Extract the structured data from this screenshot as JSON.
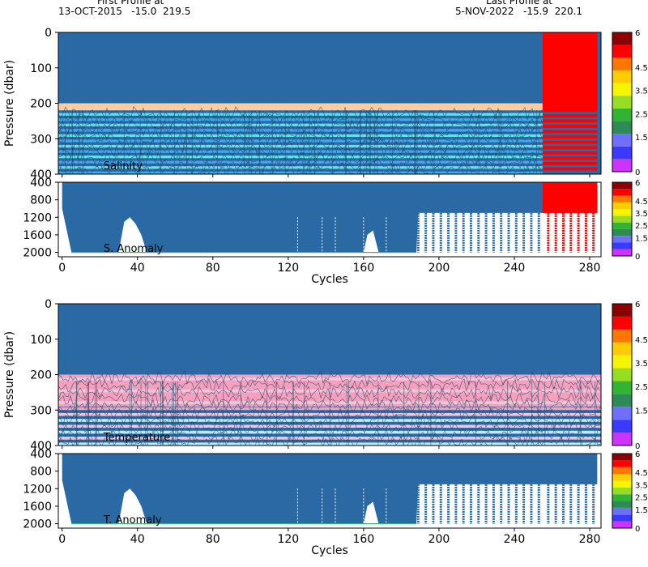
{
  "header": {
    "first_label": "First Profile at",
    "first_value": "13-OCT-2015   -15.0  219.5",
    "last_label": "Last Profile at",
    "last_value": "5-NOV-2022   -15.9  220.1"
  },
  "colors": {
    "background": "#2B69A5",
    "marker": "#2B69A5",
    "salinity_band": "#FDCCA0",
    "salinity_stripe_a": "#5FE2EC",
    "salinity_stripe_b": "#40A8F0",
    "temperature_band": "#F6A0BE",
    "temperature_stripe_a": "#F2C4DE",
    "temperature_stripe_b": "#BCEBF8",
    "flag": "#FF0000",
    "contour": "#1B4763"
  },
  "colorbar": {
    "colors": [
      "#CC33FF",
      "#3A3AFF",
      "#6E6EFF",
      "#2E8B57",
      "#33B333",
      "#99DD22",
      "#F5F500",
      "#FFCC00",
      "#FF7700",
      "#FF0000",
      "#8B0000"
    ],
    "tick_labels": [
      "0",
      "1.5",
      "2.5",
      "3.5",
      "4.5",
      "6"
    ],
    "tick_values": [
      0,
      1.5,
      2.5,
      3.5,
      4.5,
      6
    ],
    "range": [
      0,
      6
    ]
  },
  "chart_data": [
    {
      "type": "heatmap",
      "id": "salinity",
      "annotation": "Salinity",
      "ylabel": "Pressure (dbar)",
      "xlim": [
        -2,
        286
      ],
      "ylim": [
        400,
        0
      ],
      "xticks": [
        0,
        40,
        80,
        120,
        160,
        200,
        240,
        280
      ],
      "yticks": [
        0,
        100,
        200,
        300,
        400
      ],
      "flagged_cycles": [
        255,
        284
      ],
      "band_pressure_range": [
        200,
        220
      ],
      "stripe_pressure_range": [
        220,
        400
      ]
    },
    {
      "type": "scatter",
      "id": "salinity-anomaly",
      "annotation": "S. Anomaly",
      "xlabel": "Cycles",
      "xlim": [
        -2,
        286
      ],
      "ylim": [
        2100,
        400
      ],
      "xticks": [
        0,
        40,
        80,
        120,
        160,
        200,
        240,
        280
      ],
      "yticks": [
        400,
        800,
        1200,
        1600,
        2000
      ],
      "flagged_cycles": [
        255,
        284
      ],
      "max_depth_profile": [
        [
          0,
          1000
        ],
        [
          3,
          1600
        ],
        [
          5,
          2000
        ],
        [
          30,
          2000
        ],
        [
          33,
          1300
        ],
        [
          36,
          1200
        ],
        [
          39,
          1350
        ],
        [
          42,
          1600
        ],
        [
          45,
          2000
        ],
        [
          160,
          2000
        ],
        [
          162,
          1600
        ],
        [
          165,
          1500
        ],
        [
          168,
          2000
        ],
        [
          188,
          2000
        ],
        [
          189,
          1100
        ],
        [
          284,
          1100
        ],
        [
          284,
          1000
        ]
      ],
      "deep_cycle_columns": [
        189,
        193,
        197,
        201,
        205,
        209,
        213,
        217,
        221,
        225,
        229,
        233,
        237,
        241,
        245,
        249,
        253,
        258,
        262,
        266,
        270,
        274,
        278,
        282
      ],
      "white_gap_cycles": [
        125,
        138,
        145,
        160,
        172
      ]
    },
    {
      "type": "heatmap",
      "id": "temperature",
      "annotation": "Temperature",
      "ylabel": "Pressure (dbar)",
      "xlim": [
        -2,
        286
      ],
      "ylim": [
        400,
        0
      ],
      "xticks": [
        0,
        40,
        80,
        120,
        160,
        200,
        240,
        280
      ],
      "yticks": [
        0,
        100,
        200,
        300,
        400
      ],
      "flagged_cycles": [],
      "band_pressure_range": [
        200,
        290
      ],
      "stripe_pressure_range": [
        200,
        400
      ]
    },
    {
      "type": "scatter",
      "id": "temperature-anomaly",
      "annotation": "T. Anomaly",
      "xlabel": "Cycles",
      "xlim": [
        -2,
        286
      ],
      "ylim": [
        2100,
        400
      ],
      "xticks": [
        0,
        40,
        80,
        120,
        160,
        200,
        240,
        280
      ],
      "yticks": [
        400,
        800,
        1200,
        1600,
        2000
      ],
      "flagged_cycles": [],
      "max_depth_profile": [
        [
          0,
          1000
        ],
        [
          3,
          1600
        ],
        [
          5,
          2000
        ],
        [
          30,
          2000
        ],
        [
          33,
          1300
        ],
        [
          36,
          1200
        ],
        [
          39,
          1350
        ],
        [
          42,
          1600
        ],
        [
          45,
          2000
        ],
        [
          160,
          2000
        ],
        [
          162,
          1600
        ],
        [
          165,
          1500
        ],
        [
          168,
          2000
        ],
        [
          188,
          2000
        ],
        [
          189,
          1100
        ],
        [
          284,
          1100
        ],
        [
          284,
          1000
        ]
      ],
      "deep_cycle_columns": [
        189,
        193,
        197,
        201,
        205,
        209,
        213,
        217,
        221,
        225,
        229,
        233,
        237,
        241,
        245,
        249,
        253,
        258,
        262,
        266,
        270,
        274,
        278,
        282
      ],
      "white_gap_cycles": [
        125,
        138,
        145,
        160,
        172
      ]
    }
  ]
}
